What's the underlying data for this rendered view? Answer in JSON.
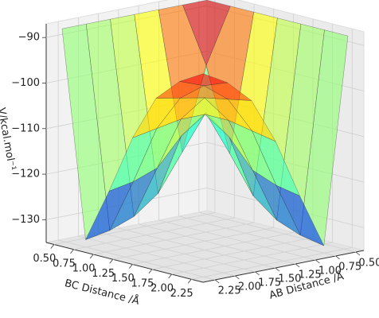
{
  "chart_data": {
    "type": "surface",
    "xlabel": "BC Distance /Å",
    "ylabel": "AB Distance /Å",
    "zlabel": "V/kcal.mol⁻¹",
    "colormap": "jet",
    "x": [
      0.5,
      0.8,
      1.1,
      1.4,
      1.7,
      2.0,
      2.3
    ],
    "y": [
      0.5,
      0.8,
      1.1,
      1.4,
      1.7,
      2.0,
      2.3
    ],
    "z": [
      [
        -88,
        -88,
        -88,
        -88,
        -88,
        -88,
        -88
      ],
      [
        -88,
        -100,
        -118,
        -126,
        -130,
        -132,
        -133
      ],
      [
        -88,
        -118,
        -108,
        -112,
        -118,
        -120,
        -121
      ],
      [
        -88,
        -126,
        -112,
        -106,
        -106,
        -107,
        -108
      ],
      [
        -88,
        -130,
        -118,
        -106,
        -100,
        -99,
        -98
      ],
      [
        -88,
        -132,
        -120,
        -107,
        -99,
        -95,
        -93
      ],
      [
        -88,
        -133,
        -121,
        -108,
        -98,
        -93,
        -90
      ]
    ],
    "xlim": [
      0.4,
      2.4
    ],
    "ylim": [
      0.4,
      2.4
    ],
    "zlim": [
      -135,
      -87
    ],
    "xticks": [
      {
        "value": 0.5,
        "label": "0.50"
      },
      {
        "value": 0.75,
        "label": "0.75"
      },
      {
        "value": 1.0,
        "label": "1.00"
      },
      {
        "value": 1.25,
        "label": "1.25"
      },
      {
        "value": 1.5,
        "label": "1.50"
      },
      {
        "value": 1.75,
        "label": "1.75"
      },
      {
        "value": 2.0,
        "label": "2.00"
      },
      {
        "value": 2.25,
        "label": "2.25"
      }
    ],
    "yticks": [
      {
        "value": 0.5,
        "label": "0.50"
      },
      {
        "value": 0.75,
        "label": "0.75"
      },
      {
        "value": 1.0,
        "label": "1.00"
      },
      {
        "value": 1.25,
        "label": "1.25"
      },
      {
        "value": 1.5,
        "label": "1.50"
      },
      {
        "value": 1.75,
        "label": "1.75"
      },
      {
        "value": 2.0,
        "label": "2.00"
      },
      {
        "value": 2.25,
        "label": "2.25"
      }
    ],
    "zticks": [
      {
        "value": -90,
        "label": "−90"
      },
      {
        "value": -100,
        "label": "−100"
      },
      {
        "value": -110,
        "label": "−110"
      },
      {
        "value": -120,
        "label": "−120"
      },
      {
        "value": -130,
        "label": "−130"
      }
    ]
  }
}
